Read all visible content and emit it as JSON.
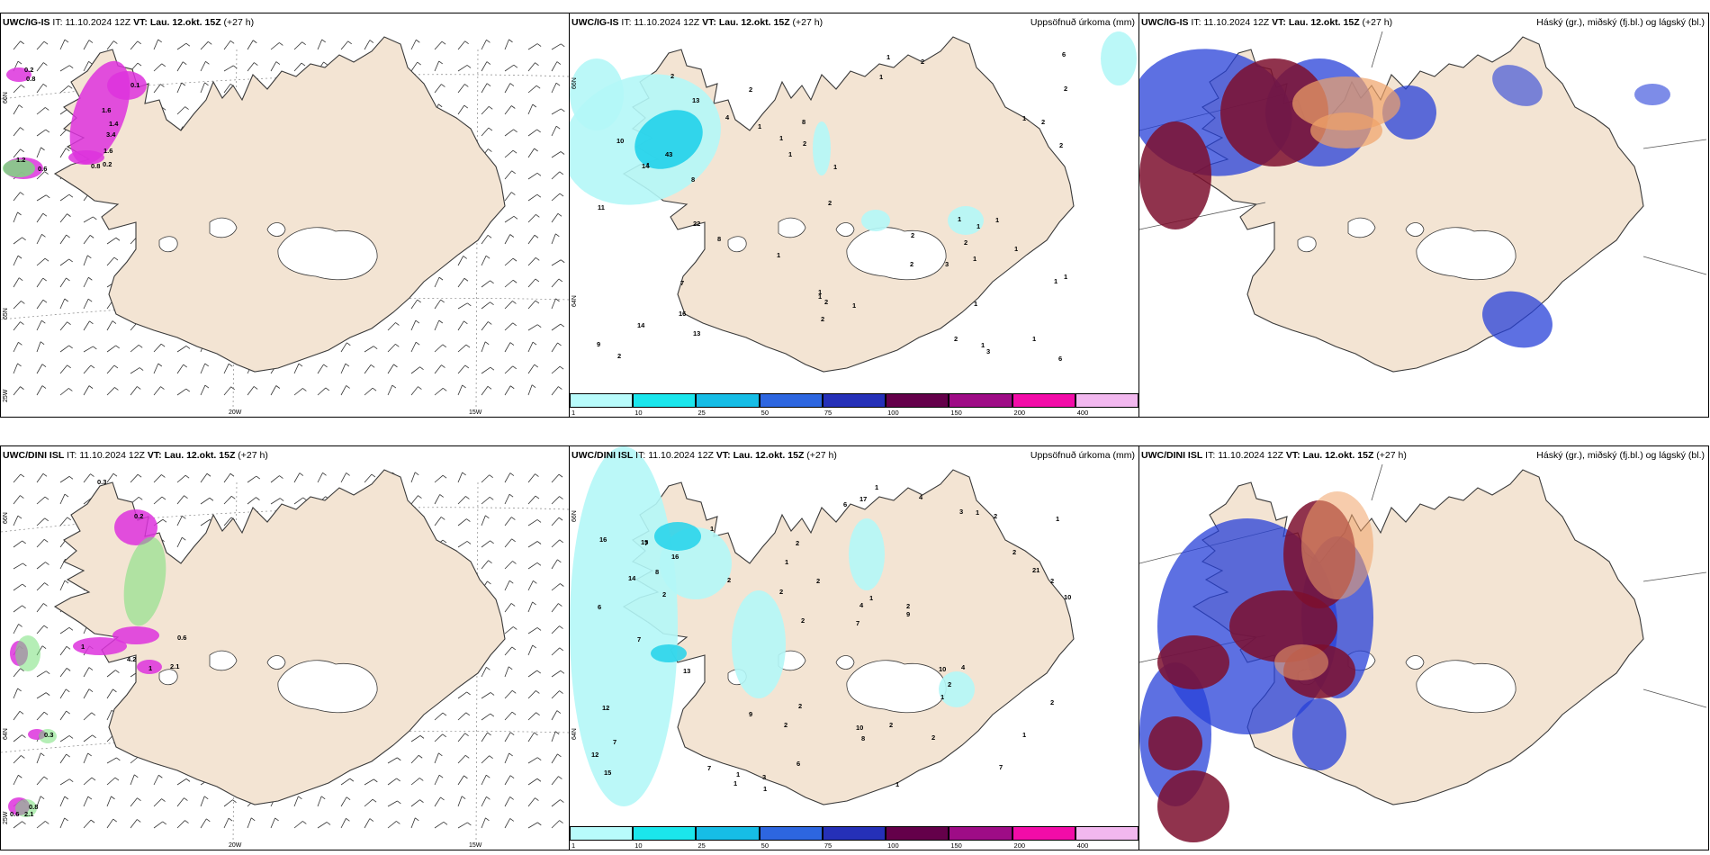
{
  "panels": [
    {
      "id": "p1",
      "model": "UWC/IG-IS",
      "it_label": "IT:",
      "it": "11.10.2024 12Z",
      "vt_label": "VT:",
      "vt": "Lau. 12.okt. 15Z",
      "lead": "(+27 h)",
      "lat_labels": [
        "66N",
        "65N",
        "25W"
      ],
      "lon_labels": [
        "20W",
        "15W"
      ],
      "values": [
        "0.2",
        "0.8",
        "0.1",
        "1.6",
        "1.4",
        "3.4",
        "1.6",
        "1.2",
        "0.6",
        "0.8",
        "0.2"
      ]
    },
    {
      "id": "p2",
      "model": "UWC/IG-IS",
      "it_label": "IT:",
      "it": "11.10.2024 12Z",
      "vt_label": "VT:",
      "vt": "Lau. 12.okt. 15Z",
      "lead": "(+27 h)",
      "right_title": "Uppsöfnuð úrkoma (mm)",
      "lat_labels": [
        "66N",
        "64N"
      ],
      "values": [
        "8",
        "7",
        "9",
        "13",
        "10",
        "14",
        "16",
        "14",
        "13",
        "22",
        "43",
        "2",
        "1",
        "11",
        "2",
        "8",
        "8",
        "2",
        "2",
        "1",
        "2",
        "1",
        "1",
        "6",
        "1",
        "6",
        "4",
        "2",
        "1",
        "1",
        "1",
        "2",
        "2",
        "2",
        "3",
        "2",
        "2",
        "1",
        "1",
        "1",
        "1",
        "1",
        "1",
        "2",
        "1",
        "2",
        "2",
        "1",
        "1",
        "1",
        "1",
        "1",
        "1",
        "1",
        "2",
        "3"
      ]
    },
    {
      "id": "p3",
      "model": "UWC/IG-IS",
      "it_label": "IT:",
      "it": "11.10.2024 12Z",
      "vt_label": "VT:",
      "vt": "Lau. 12.okt. 15Z",
      "lead": "(+27 h)",
      "right_title": "Háský (gr.), miðský (fj.bl.) og lágský (bl.)"
    },
    {
      "id": "p4",
      "model": "UWC/DINI ISL",
      "it_label": "IT:",
      "it": "11.10.2024 12Z",
      "vt_label": "VT:",
      "vt": "Lau. 12.okt. 15Z",
      "lead": "(+27 h)",
      "lat_labels": [
        "66N",
        "64N",
        "25W"
      ],
      "lon_labels": [
        "20W",
        "15W"
      ],
      "values": [
        "0.3",
        "0.2",
        "0.6",
        "1",
        "4.2",
        "1",
        "2.1",
        "0.3",
        "0.8",
        "0.6",
        "2.1"
      ]
    },
    {
      "id": "p5",
      "model": "UWC/DINI ISL",
      "it_label": "IT:",
      "it": "11.10.2024 12Z",
      "vt_label": "VT:",
      "vt": "Lau. 12.okt. 15Z",
      "lead": "(+27 h)",
      "right_title": "Uppsöfnuð úrkoma (mm)",
      "lat_labels": [
        "66N",
        "64N"
      ],
      "values": [
        "7",
        "6",
        "1",
        "7",
        "16",
        "15",
        "15",
        "8",
        "12",
        "14",
        "12",
        "7",
        "7",
        "2",
        "13",
        "16",
        "17",
        "10",
        "10",
        "21",
        "7",
        "10",
        "4",
        "2",
        "3",
        "2",
        "7",
        "1",
        "4",
        "1",
        "2",
        "2",
        "1",
        "6",
        "2",
        "2",
        "1",
        "8",
        "9",
        "9",
        "2",
        "1",
        "2",
        "2",
        "2",
        "1",
        "1",
        "2",
        "2",
        "1",
        "2",
        "2",
        "1",
        "1",
        "3",
        "4",
        "6",
        "1",
        "2"
      ]
    },
    {
      "id": "p6",
      "model": "UWC/DINI ISL",
      "it_label": "IT:",
      "it": "11.10.2024 12Z",
      "vt_label": "VT:",
      "vt": "Lau. 12.okt. 15Z",
      "lead": "(+27 h)",
      "right_title": "Háský (gr.), miðský (fj.bl.) og lágský (bl.)"
    }
  ],
  "legend": {
    "ticks": [
      "1",
      "10",
      "25",
      "50",
      "75",
      "100",
      "150",
      "200",
      "400"
    ],
    "colors": [
      "#b8fbfb",
      "#1be6ec",
      "#16bde6",
      "#2d66e0",
      "#2530b8",
      "#64004a",
      "#9e0c86",
      "#f20ca8",
      "#f2b8ef"
    ]
  },
  "colors": {
    "land": "#f3e4d3",
    "coast": "#3a3a3a",
    "precip_light": "#b4f7f7",
    "precip_mid": "#22d2ea",
    "precip_dark": "#0ea9db",
    "high_cloud": "#f0a268",
    "mid_cloud": "#7d0f2e",
    "low_cloud": "#2740d8",
    "wind_precip": "#dd33dd",
    "wind_green": "#79e07a"
  }
}
